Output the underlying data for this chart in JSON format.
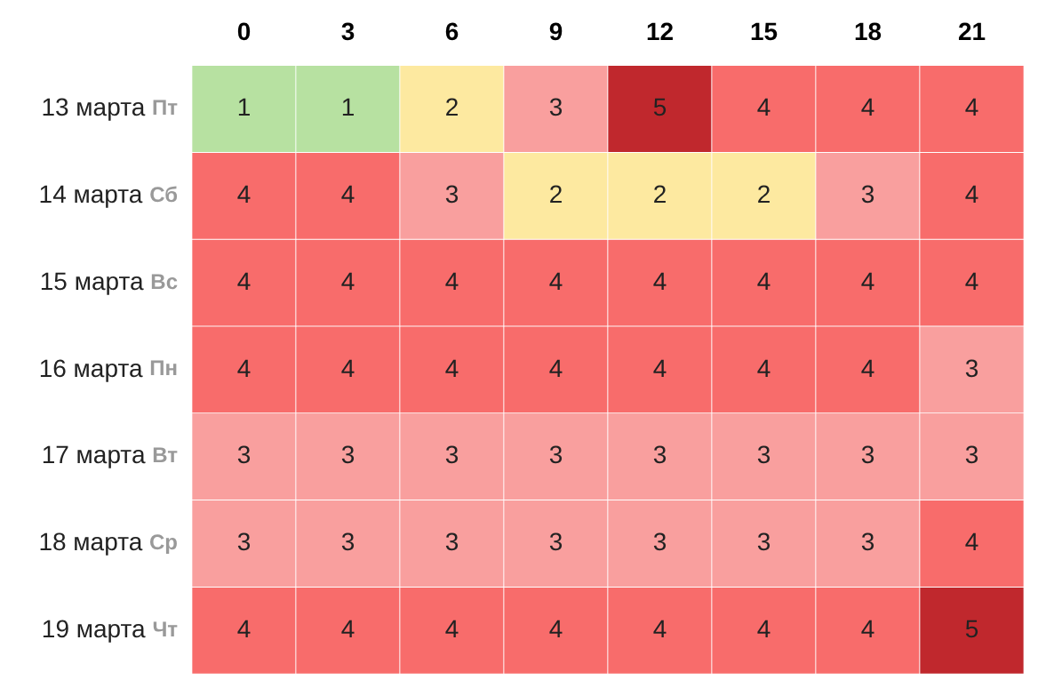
{
  "chart_data": {
    "type": "heatmap",
    "data_labels": true,
    "categories": [
      "0",
      "3",
      "6",
      "9",
      "12",
      "15",
      "18",
      "21"
    ],
    "y_categories": [
      "13 марта Пт",
      "14 марта Сб",
      "15 марта Вс",
      "16 марта Пн",
      "17 марта Вт",
      "18 марта Ср",
      "19 марта Чт"
    ],
    "cells": [
      [
        1,
        1,
        2,
        3,
        5,
        4,
        4,
        4
      ],
      [
        4,
        4,
        3,
        2,
        2,
        2,
        3,
        4
      ],
      [
        4,
        4,
        4,
        4,
        4,
        4,
        4,
        4
      ],
      [
        4,
        4,
        4,
        4,
        4,
        4,
        4,
        3
      ],
      [
        3,
        3,
        3,
        3,
        3,
        3,
        3,
        3
      ],
      [
        3,
        3,
        3,
        3,
        3,
        3,
        3,
        4
      ],
      [
        4,
        4,
        4,
        4,
        4,
        4,
        4,
        5
      ]
    ]
  }
}
